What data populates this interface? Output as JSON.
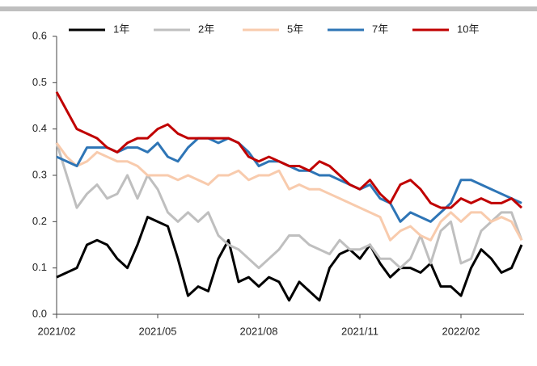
{
  "chart_data": {
    "type": "line",
    "categories": [
      "2021/02",
      null,
      null,
      null,
      null,
      null,
      null,
      null,
      null,
      null,
      "2021/05",
      null,
      null,
      null,
      null,
      null,
      null,
      null,
      null,
      null,
      "2021/08",
      null,
      null,
      null,
      null,
      null,
      null,
      null,
      null,
      null,
      "2021/11",
      null,
      null,
      null,
      null,
      null,
      null,
      null,
      null,
      null,
      "2022/02",
      null,
      null,
      null,
      null,
      null,
      null
    ],
    "ylim": [
      0,
      0.6
    ],
    "yticks": [
      {
        "value": 0,
        "label": "0.0"
      },
      0.1,
      0.2,
      0.3,
      0.4,
      0.5,
      0.6
    ],
    "legend": "top",
    "series": [
      {
        "name": "1年",
        "color": "#000000",
        "values": [
          0.08,
          0.09,
          0.1,
          0.15,
          0.16,
          0.15,
          0.12,
          0.1,
          0.15,
          0.21,
          0.2,
          0.19,
          0.12,
          0.04,
          0.06,
          0.05,
          0.12,
          0.16,
          0.07,
          0.08,
          0.06,
          0.08,
          0.07,
          0.03,
          0.07,
          0.05,
          0.03,
          0.1,
          0.13,
          0.14,
          0.12,
          0.15,
          0.11,
          0.08,
          0.1,
          0.1,
          0.09,
          0.11,
          0.06,
          0.06,
          0.04,
          0.1,
          0.14,
          0.12,
          0.09,
          0.1,
          0.15
        ]
      },
      {
        "name": "2年",
        "color": "#bfbfbf",
        "values": [
          0.37,
          0.3,
          0.23,
          0.26,
          0.28,
          0.25,
          0.26,
          0.3,
          0.25,
          0.3,
          0.27,
          0.22,
          0.2,
          0.22,
          0.2,
          0.22,
          0.17,
          0.15,
          0.14,
          0.12,
          0.1,
          0.12,
          0.14,
          0.17,
          0.17,
          0.15,
          0.14,
          0.13,
          0.16,
          0.14,
          0.14,
          0.15,
          0.12,
          0.12,
          0.1,
          0.12,
          0.17,
          0.11,
          0.18,
          0.2,
          0.11,
          0.12,
          0.18,
          0.2,
          0.22,
          0.22,
          0.16
        ]
      },
      {
        "name": "5年",
        "color": "#f8cbad",
        "values": [
          0.37,
          0.34,
          0.32,
          0.33,
          0.35,
          0.34,
          0.33,
          0.33,
          0.32,
          0.3,
          0.3,
          0.3,
          0.29,
          0.3,
          0.29,
          0.28,
          0.3,
          0.3,
          0.31,
          0.29,
          0.3,
          0.3,
          0.31,
          0.27,
          0.28,
          0.27,
          0.27,
          0.26,
          0.25,
          0.24,
          0.23,
          0.22,
          0.21,
          0.16,
          0.18,
          0.19,
          0.17,
          0.16,
          0.2,
          0.22,
          0.2,
          0.22,
          0.22,
          0.2,
          0.21,
          0.2,
          0.16
        ]
      },
      {
        "name": "7年",
        "color": "#2e75b6",
        "values": [
          0.34,
          0.33,
          0.32,
          0.36,
          0.36,
          0.36,
          0.35,
          0.36,
          0.36,
          0.35,
          0.37,
          0.34,
          0.33,
          0.36,
          0.38,
          0.38,
          0.37,
          0.38,
          0.37,
          0.35,
          0.32,
          0.33,
          0.33,
          0.32,
          0.31,
          0.31,
          0.3,
          0.3,
          0.29,
          0.28,
          0.27,
          0.28,
          0.25,
          0.24,
          0.2,
          0.22,
          0.21,
          0.2,
          0.22,
          0.24,
          0.29,
          0.29,
          0.28,
          0.27,
          0.26,
          0.25,
          0.24
        ]
      },
      {
        "name": "10年",
        "color": "#c00000",
        "values": [
          0.48,
          0.44,
          0.4,
          0.39,
          0.38,
          0.36,
          0.35,
          0.37,
          0.38,
          0.38,
          0.4,
          0.41,
          0.39,
          0.38,
          0.38,
          0.38,
          0.38,
          0.38,
          0.37,
          0.34,
          0.33,
          0.34,
          0.33,
          0.32,
          0.32,
          0.31,
          0.33,
          0.32,
          0.3,
          0.28,
          0.27,
          0.29,
          0.26,
          0.24,
          0.28,
          0.29,
          0.27,
          0.24,
          0.23,
          0.23,
          0.25,
          0.24,
          0.25,
          0.24,
          0.24,
          0.25,
          0.23
        ]
      }
    ]
  }
}
